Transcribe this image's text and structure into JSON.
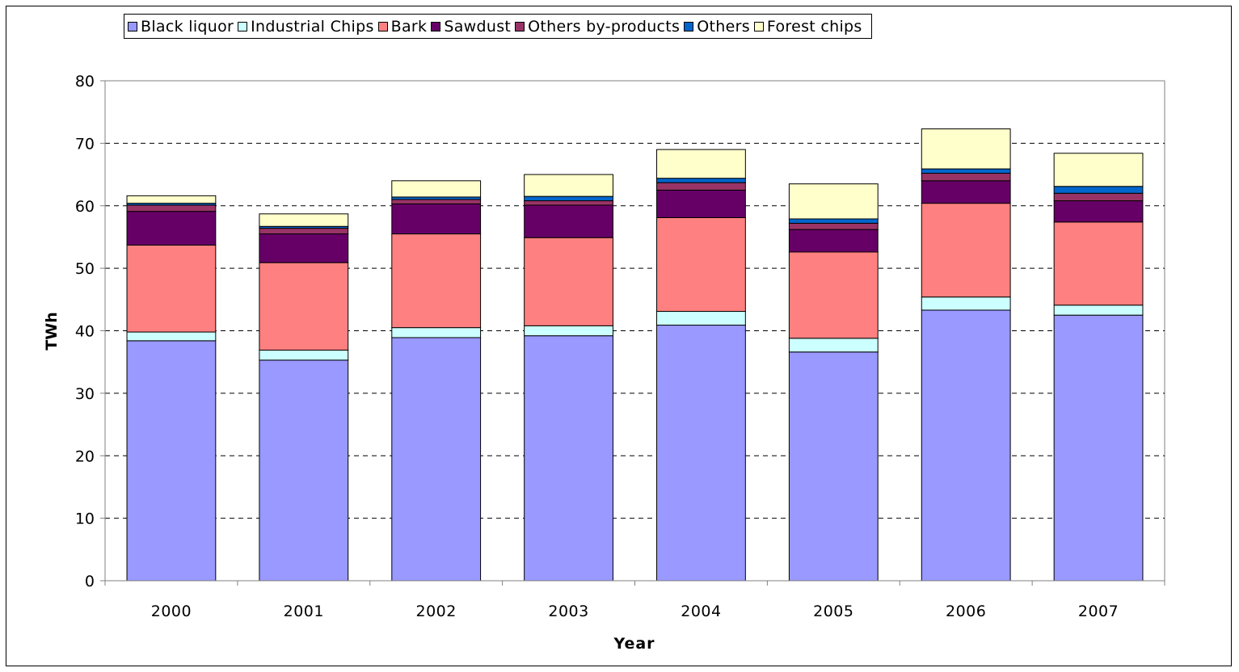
{
  "chart_data": {
    "type": "bar",
    "stacked": true,
    "categories": [
      "2000",
      "2001",
      "2002",
      "2003",
      "2004",
      "2005",
      "2006",
      "2007"
    ],
    "xlabel": "Year",
    "ylabel": "TWh",
    "ylim": [
      0,
      80
    ],
    "yticks": [
      0,
      10,
      20,
      30,
      40,
      50,
      60,
      70,
      80
    ],
    "grid": "horizontal dashed",
    "legend_position": "top",
    "series": [
      {
        "name": "Black liquor",
        "color": "#9999ff",
        "values": [
          38.4,
          35.3,
          38.9,
          39.2,
          40.9,
          36.6,
          43.3,
          42.5
        ]
      },
      {
        "name": "Industrial Chips",
        "color": "#ccffff",
        "values": [
          1.4,
          1.6,
          1.6,
          1.6,
          2.2,
          2.2,
          2.1,
          1.6
        ]
      },
      {
        "name": "Bark",
        "color": "#ff8080",
        "values": [
          13.9,
          14.0,
          15.0,
          14.1,
          15.0,
          13.8,
          15.0,
          13.3
        ]
      },
      {
        "name": "Sawdust",
        "color": "#660066",
        "values": [
          5.4,
          4.6,
          4.8,
          5.2,
          4.4,
          3.6,
          3.6,
          3.4
        ]
      },
      {
        "name": "Others by-products",
        "color": "#993366",
        "values": [
          1.0,
          0.9,
          0.7,
          0.7,
          1.2,
          1.0,
          1.2,
          1.2
        ]
      },
      {
        "name": "Others",
        "color": "#0066cc",
        "values": [
          0.3,
          0.3,
          0.4,
          0.7,
          0.7,
          0.7,
          0.7,
          1.1
        ]
      },
      {
        "name": "Forest chips",
        "color": "#ffffcc",
        "values": [
          1.2,
          2.0,
          2.6,
          3.5,
          4.6,
          5.6,
          6.4,
          5.3
        ]
      }
    ]
  }
}
